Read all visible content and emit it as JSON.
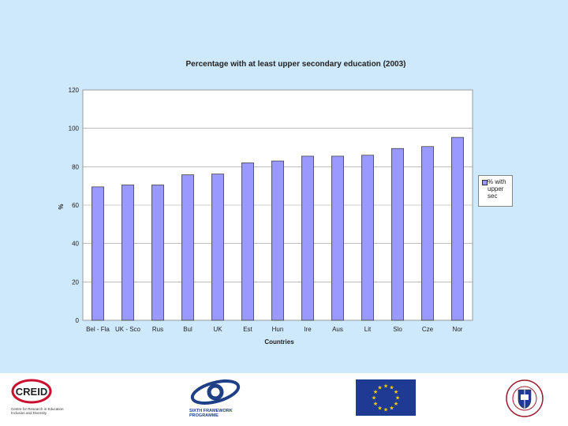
{
  "chart_data": {
    "type": "bar",
    "title": "Percentage with at least upper secondary education (2003)",
    "xlabel": "Countries",
    "ylabel": "%",
    "ylim": [
      0,
      120
    ],
    "yticks": [
      "0",
      "20",
      "40",
      "60",
      "80",
      "100",
      "120"
    ],
    "grid": true,
    "legend_position": "right",
    "categories": [
      "Bel - Fla",
      "UK - Sco",
      "Rus",
      "Bul",
      "UK",
      "Est",
      "Hun",
      "Ire",
      "Aus",
      "Lit",
      "Slo",
      "Cze",
      "Nor"
    ],
    "series": [
      {
        "name": "% with upper sec",
        "values": [
          69.5,
          70.5,
          70.5,
          75.8,
          76.2,
          82,
          83,
          85.5,
          85.5,
          86,
          89.5,
          90.5,
          95.3
        ],
        "color": "#9999ff"
      }
    ]
  },
  "colors": {
    "background": "#cde9fb",
    "bar": "#9999ff",
    "plot_bg": "#ffffff"
  },
  "footer": {
    "creid_logo_text": "CREID",
    "creid_caption": "Centre for Research in Education Inclusion and Diversity",
    "sixth_framework": "SIXTH FRAMEWORK PROGRAMME",
    "eu_flag": "eu-flag",
    "university_seal": "university-seal"
  }
}
